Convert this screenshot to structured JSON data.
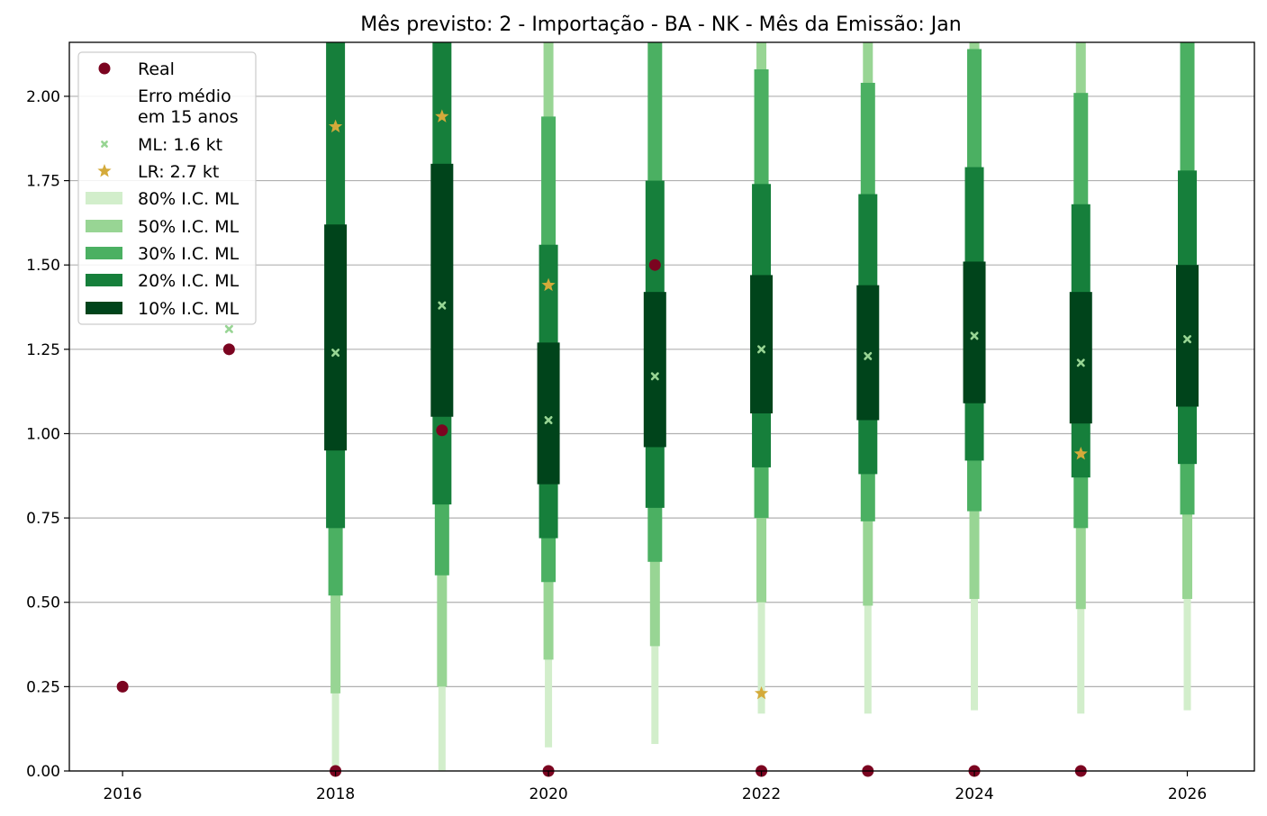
{
  "chart_data": {
    "type": "errorbar",
    "title": "Mês previsto: 2 - Importação - BA - NK - Mês da Emissão: Jan",
    "xlabel": "",
    "ylabel": "",
    "xlim": [
      2015.5,
      2026.63
    ],
    "ylim": [
      0,
      2.16
    ],
    "grid": "y",
    "x_ticks": [
      2016,
      2018,
      2020,
      2022,
      2024,
      2026
    ],
    "x_tick_labels": [
      "2016",
      "2018",
      "2020",
      "2022",
      "2024",
      "2026"
    ],
    "y_ticks": [
      0,
      0.25,
      0.5,
      0.75,
      1.0,
      1.25,
      1.5,
      1.75,
      2.0
    ],
    "y_tick_labels": [
      "0.00",
      "0.25",
      "0.50",
      "0.75",
      "1.00",
      "1.25",
      "1.50",
      "1.75",
      "2.00"
    ],
    "legend": {
      "placement": "top-left",
      "entries": [
        "Real",
        "Erro médio\nem 15 anos",
        "ML: 1.6 kt",
        "LR: 2.7 kt",
        "80% I.C. ML",
        "50% I.C. ML",
        "30% I.C. ML",
        "20% I.C. ML",
        "10% I.C. ML"
      ]
    },
    "colors": {
      "real": "#7b0420",
      "ml": "#98d594",
      "lr": "#d4aa3a",
      "ic80": "#d2eecb",
      "ic50": "#98d594",
      "ic30": "#4bb062",
      "ic20": "#167f3b",
      "ic10": "#00441b",
      "grid": "#b0b0b0"
    },
    "real": [
      {
        "x": 2016,
        "y": 0.25
      },
      {
        "x": 2017,
        "y": 1.25
      },
      {
        "x": 2018,
        "y": 0.0
      },
      {
        "x": 2019,
        "y": 1.01
      },
      {
        "x": 2020,
        "y": 0.0
      },
      {
        "x": 2021,
        "y": 1.5
      },
      {
        "x": 2022,
        "y": 0.0
      },
      {
        "x": 2023,
        "y": 0.0
      },
      {
        "x": 2024,
        "y": 0.0
      },
      {
        "x": 2025,
        "y": 0.0
      }
    ],
    "ml": [
      {
        "x": 2017,
        "y": 1.31
      },
      {
        "x": 2018,
        "y": 1.24
      },
      {
        "x": 2019,
        "y": 1.38
      },
      {
        "x": 2020,
        "y": 1.04
      },
      {
        "x": 2021,
        "y": 1.17
      },
      {
        "x": 2022,
        "y": 1.25
      },
      {
        "x": 2023,
        "y": 1.23
      },
      {
        "x": 2024,
        "y": 1.29
      },
      {
        "x": 2025,
        "y": 1.21
      },
      {
        "x": 2026,
        "y": 1.28
      }
    ],
    "lr": [
      {
        "x": 2018,
        "y": 1.91
      },
      {
        "x": 2019,
        "y": 1.94
      },
      {
        "x": 2020,
        "y": 1.44
      },
      {
        "x": 2022,
        "y": 0.23
      },
      {
        "x": 2025,
        "y": 0.94
      }
    ],
    "intervals": [
      {
        "x": 2018,
        "ic80": [
          0.0,
          2.16
        ],
        "ic50": [
          0.23,
          2.16
        ],
        "ic30": [
          0.52,
          2.16
        ],
        "ic20": [
          0.72,
          2.16
        ],
        "ic10": [
          0.95,
          1.62
        ]
      },
      {
        "x": 2019,
        "ic80": [
          0.0,
          2.16
        ],
        "ic50": [
          0.25,
          2.16
        ],
        "ic30": [
          0.58,
          2.16
        ],
        "ic20": [
          0.79,
          2.16
        ],
        "ic10": [
          1.05,
          1.8
        ]
      },
      {
        "x": 2020,
        "ic80": [
          0.07,
          2.16
        ],
        "ic50": [
          0.33,
          2.16
        ],
        "ic30": [
          0.56,
          1.94
        ],
        "ic20": [
          0.69,
          1.56
        ],
        "ic10": [
          0.85,
          1.27
        ]
      },
      {
        "x": 2021,
        "ic80": [
          0.08,
          2.16
        ],
        "ic50": [
          0.37,
          2.16
        ],
        "ic30": [
          0.62,
          2.16
        ],
        "ic20": [
          0.78,
          1.75
        ],
        "ic10": [
          0.96,
          1.42
        ]
      },
      {
        "x": 2022,
        "ic80": [
          0.17,
          2.16
        ],
        "ic50": [
          0.5,
          2.16
        ],
        "ic30": [
          0.75,
          2.08
        ],
        "ic20": [
          0.9,
          1.74
        ],
        "ic10": [
          1.06,
          1.47
        ]
      },
      {
        "x": 2023,
        "ic80": [
          0.17,
          2.16
        ],
        "ic50": [
          0.49,
          2.16
        ],
        "ic30": [
          0.74,
          2.04
        ],
        "ic20": [
          0.88,
          1.71
        ],
        "ic10": [
          1.04,
          1.44
        ]
      },
      {
        "x": 2024,
        "ic80": [
          0.18,
          2.16
        ],
        "ic50": [
          0.51,
          2.16
        ],
        "ic30": [
          0.77,
          2.14
        ],
        "ic20": [
          0.92,
          1.79
        ],
        "ic10": [
          1.09,
          1.51
        ]
      },
      {
        "x": 2025,
        "ic80": [
          0.17,
          2.16
        ],
        "ic50": [
          0.48,
          2.16
        ],
        "ic30": [
          0.72,
          2.01
        ],
        "ic20": [
          0.87,
          1.68
        ],
        "ic10": [
          1.03,
          1.42
        ]
      },
      {
        "x": 2026,
        "ic80": [
          0.18,
          2.16
        ],
        "ic50": [
          0.51,
          2.16
        ],
        "ic30": [
          0.76,
          2.16
        ],
        "ic20": [
          0.91,
          1.78
        ],
        "ic10": [
          1.08,
          1.5
        ]
      }
    ]
  }
}
